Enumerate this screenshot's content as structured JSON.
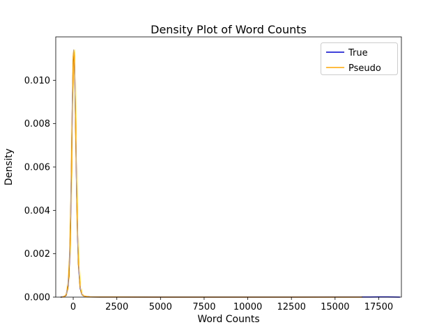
{
  "chart_data": {
    "type": "line",
    "title": "Density Plot of Word Counts",
    "xlabel": "Word Counts",
    "ylabel": "Density",
    "xlim": [
      -1000,
      18800
    ],
    "ylim": [
      0,
      0.012
    ],
    "x_ticks": [
      0,
      2500,
      5000,
      7500,
      10000,
      12500,
      15000,
      17500
    ],
    "x_tick_labels": [
      "0",
      "2500",
      "5000",
      "7500",
      "10000",
      "12500",
      "15000",
      "17500"
    ],
    "y_ticks": [
      0,
      0.002,
      0.004,
      0.006,
      0.008,
      0.01
    ],
    "y_tick_labels": [
      "0.000",
      "0.002",
      "0.004",
      "0.006",
      "0.008",
      "0.010"
    ],
    "grid": false,
    "legend": {
      "position": "upper right"
    },
    "axis_color": "#000000",
    "legend_border_color": "#cccccc",
    "series": [
      {
        "name": "True",
        "color": "#0000cd",
        "x": [
          -700,
          -500,
          -400,
          -300,
          -250,
          -200,
          -150,
          -100,
          -50,
          0,
          30,
          60,
          100,
          150,
          200,
          250,
          300,
          400,
          500,
          600,
          800,
          1000,
          1500,
          2500,
          5000,
          7500,
          10000,
          12500,
          15000,
          16500,
          17000,
          17500,
          18000,
          18400,
          18700
        ],
        "y": [
          0,
          3e-05,
          0.0001,
          0.0005,
          0.001,
          0.0019,
          0.0035,
          0.006,
          0.0088,
          0.0109,
          0.0113,
          0.0111,
          0.0097,
          0.0072,
          0.0047,
          0.0028,
          0.0015,
          0.0004,
          0.00012,
          5e-05,
          2e-05,
          1e-05,
          5e-06,
          3e-06,
          2e-06,
          2e-06,
          2e-06,
          2e-06,
          3e-06,
          4e-06,
          5e-06,
          6e-06,
          6e-06,
          4e-06,
          0
        ]
      },
      {
        "name": "Pseudo",
        "color": "#ffa500",
        "x": [
          -650,
          -500,
          -400,
          -300,
          -250,
          -200,
          -150,
          -100,
          -50,
          0,
          30,
          60,
          100,
          150,
          200,
          250,
          300,
          400,
          500,
          600,
          800,
          1000,
          1500,
          2500,
          5000,
          7500,
          10000,
          12500,
          15000,
          16000,
          16500
        ],
        "y": [
          0,
          4e-05,
          0.00012,
          0.0006,
          0.0012,
          0.0021,
          0.0038,
          0.0063,
          0.009,
          0.0111,
          0.0114,
          0.0112,
          0.0098,
          0.0073,
          0.0048,
          0.0029,
          0.0016,
          0.00045,
          0.00013,
          5e-05,
          2e-05,
          1e-05,
          5e-06,
          3e-06,
          2e-06,
          2e-06,
          2e-06,
          2e-06,
          2e-06,
          1e-06,
          0
        ]
      }
    ]
  }
}
